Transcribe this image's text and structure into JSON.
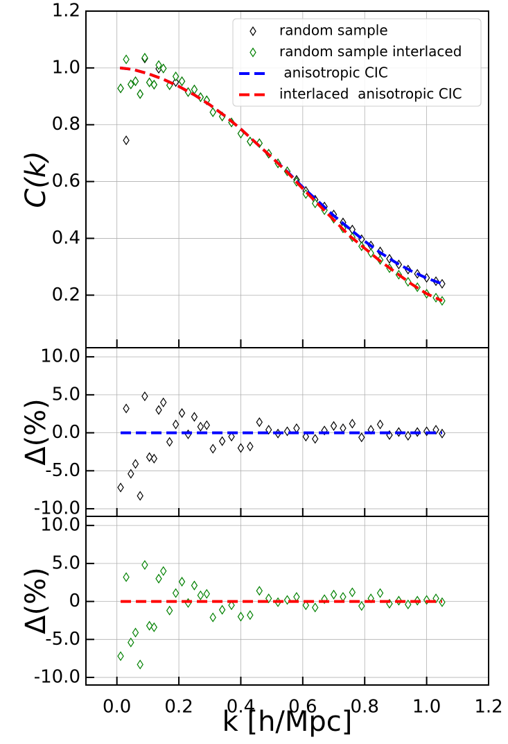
{
  "chart_data": [
    {
      "type": "scatter",
      "ylabel": "C(k)",
      "xlim": [
        -0.1,
        1.2
      ],
      "ylim": [
        0.015,
        1.2
      ],
      "xticks": [
        {
          "value": 0,
          "label": "0.0"
        },
        0.2,
        0.4,
        0.6,
        0.8,
        {
          "value": 1,
          "label": "1.0"
        },
        1.2
      ],
      "show_xtick_labels": false,
      "yticks": [
        0.2,
        0.4,
        0.6,
        0.8,
        {
          "value": 1,
          "label": "1.0"
        },
        1.2
      ],
      "grid": true,
      "legend": "upper right",
      "series": [
        {
          "name": "random sample",
          "mark": "diamond",
          "color": "#000000",
          "x": [
            0.012,
            0.03,
            0.045,
            0.06,
            0.075,
            0.09,
            0.105,
            0.12,
            0.135,
            0.15,
            0.17,
            0.19,
            0.21,
            0.23,
            0.25,
            0.27,
            0.29,
            0.31,
            0.34,
            0.37,
            0.4,
            0.43,
            0.46,
            0.49,
            0.52,
            0.55,
            0.58,
            0.61,
            0.64,
            0.67,
            0.7,
            0.73,
            0.76,
            0.79,
            0.82,
            0.85,
            0.88,
            0.91,
            0.94,
            0.97,
            1.0,
            1.03,
            1.05
          ],
          "values": [
            0.928,
            0.745,
            0.942,
            0.953,
            0.908,
            1.033,
            0.949,
            0.941,
            0.997,
            0.998,
            0.939,
            0.95,
            0.953,
            0.915,
            0.924,
            0.897,
            0.886,
            0.844,
            0.829,
            0.808,
            0.769,
            0.741,
            0.735,
            0.698,
            0.664,
            0.636,
            0.606,
            0.567,
            0.536,
            0.512,
            0.484,
            0.456,
            0.431,
            0.397,
            0.375,
            0.354,
            0.328,
            0.308,
            0.29,
            0.275,
            0.261,
            0.249,
            0.24
          ]
        },
        {
          "name": "random sample interlaced",
          "mark": "diamond",
          "color": "#008000",
          "x": [
            0.012,
            0.03,
            0.045,
            0.06,
            0.075,
            0.09,
            0.105,
            0.12,
            0.135,
            0.15,
            0.17,
            0.19,
            0.21,
            0.23,
            0.25,
            0.27,
            0.29,
            0.31,
            0.34,
            0.37,
            0.4,
            0.43,
            0.46,
            0.49,
            0.52,
            0.55,
            0.58,
            0.61,
            0.64,
            0.67,
            0.7,
            0.73,
            0.76,
            0.79,
            0.82,
            0.85,
            0.88,
            0.91,
            0.94,
            0.97,
            1.0,
            1.03,
            1.05
          ],
          "values": [
            0.928,
            1.03,
            0.942,
            0.953,
            0.908,
            1.036,
            0.949,
            0.941,
            1.01,
            0.998,
            0.939,
            0.97,
            0.953,
            0.915,
            0.924,
            0.897,
            0.886,
            0.844,
            0.829,
            0.808,
            0.769,
            0.741,
            0.735,
            0.698,
            0.664,
            0.636,
            0.599,
            0.556,
            0.523,
            0.499,
            0.469,
            0.435,
            0.404,
            0.372,
            0.348,
            0.324,
            0.295,
            0.272,
            0.247,
            0.228,
            0.205,
            0.191,
            0.18
          ]
        },
        {
          "name": " anisotropic CIC",
          "mark": "dashed-line",
          "color": "#0000ff",
          "x": [
            0.01,
            0.05,
            0.1,
            0.15,
            0.2,
            0.25,
            0.3,
            0.35,
            0.4,
            0.45,
            0.5,
            0.55,
            0.6,
            0.65,
            0.7,
            0.75,
            0.8,
            0.85,
            0.9,
            0.95,
            1.0,
            1.05
          ],
          "values": [
            1.0,
            0.995,
            0.98,
            0.96,
            0.935,
            0.905,
            0.87,
            0.83,
            0.785,
            0.735,
            0.685,
            0.635,
            0.58,
            0.53,
            0.48,
            0.435,
            0.39,
            0.35,
            0.315,
            0.285,
            0.26,
            0.24
          ]
        },
        {
          "name": "interlaced  anisotropic CIC",
          "mark": "dashed-line",
          "color": "#ff0000",
          "x": [
            0.01,
            0.05,
            0.1,
            0.15,
            0.2,
            0.25,
            0.3,
            0.35,
            0.4,
            0.45,
            0.5,
            0.55,
            0.6,
            0.65,
            0.7,
            0.75,
            0.8,
            0.85,
            0.9,
            0.95,
            1.0,
            1.05
          ],
          "values": [
            1.0,
            0.995,
            0.98,
            0.96,
            0.935,
            0.905,
            0.87,
            0.83,
            0.785,
            0.735,
            0.685,
            0.633,
            0.575,
            0.52,
            0.465,
            0.41,
            0.365,
            0.32,
            0.28,
            0.24,
            0.205,
            0.18
          ]
        }
      ]
    },
    {
      "type": "scatter",
      "ylabel": "Δ(%)",
      "xlim": [
        -0.1,
        1.2
      ],
      "ylim": [
        -11,
        11.2
      ],
      "xticks": [
        {
          "value": 0,
          "label": "0.0"
        },
        0.2,
        0.4,
        0.6,
        0.8,
        {
          "value": 1,
          "label": "1.0"
        },
        1.2
      ],
      "show_xtick_labels": false,
      "yticks": [
        {
          "value": -10,
          "label": "-10.0"
        },
        {
          "value": -5,
          "label": "-5.0"
        },
        {
          "value": 0,
          "label": "0.0"
        },
        {
          "value": 5,
          "label": "5.0"
        },
        {
          "value": 10,
          "label": "10.0"
        }
      ],
      "grid": true,
      "series": [
        {
          "mark": "diamond",
          "color": "#000000",
          "x": [
            0.012,
            0.03,
            0.045,
            0.06,
            0.075,
            0.09,
            0.105,
            0.12,
            0.135,
            0.15,
            0.17,
            0.19,
            0.21,
            0.23,
            0.25,
            0.27,
            0.29,
            0.31,
            0.34,
            0.37,
            0.4,
            0.43,
            0.46,
            0.49,
            0.52,
            0.55,
            0.58,
            0.61,
            0.64,
            0.67,
            0.7,
            0.73,
            0.76,
            0.79,
            0.82,
            0.85,
            0.88,
            0.91,
            0.94,
            0.97,
            1.0,
            1.03,
            1.05
          ],
          "values": [
            -7.2,
            3.2,
            -5.4,
            -4.1,
            -8.3,
            4.8,
            -3.2,
            -3.4,
            3,
            4,
            -1.2,
            1.1,
            2.6,
            -0.2,
            2.1,
            0.8,
            1,
            -2.1,
            -1.1,
            -0.5,
            -2,
            -1.8,
            1.4,
            0.4,
            -0.1,
            0.2,
            0.6,
            -0.5,
            -0.8,
            0.3,
            0.9,
            0.6,
            1.2,
            -0.6,
            0.4,
            1.1,
            -0.3,
            0.1,
            -0.4,
            0.1,
            0.2,
            0.4,
            -0.1
          ]
        },
        {
          "mark": "dashed-line",
          "color": "#0000ff",
          "x": [
            0.012,
            1.05
          ],
          "values": [
            0,
            0
          ]
        }
      ]
    },
    {
      "type": "scatter",
      "ylabel": "Δ(%)",
      "xlabel": "k [h/Mpc]",
      "xlim": [
        -0.1,
        1.2
      ],
      "ylim": [
        -11,
        11.2
      ],
      "xticks": [
        {
          "value": 0,
          "label": "0.0"
        },
        0.2,
        0.4,
        0.6,
        0.8,
        {
          "value": 1,
          "label": "1.0"
        },
        1.2
      ],
      "show_xtick_labels": true,
      "yticks": [
        {
          "value": -10,
          "label": "-10.0"
        },
        {
          "value": -5,
          "label": "-5.0"
        },
        0,
        {
          "value": 5,
          "label": "5.0"
        },
        {
          "value": 10,
          "label": "10.0"
        }
      ],
      "grid": true,
      "series": [
        {
          "mark": "diamond",
          "color": "#008000",
          "x": [
            0.012,
            0.03,
            0.045,
            0.06,
            0.075,
            0.09,
            0.105,
            0.12,
            0.135,
            0.15,
            0.17,
            0.19,
            0.21,
            0.23,
            0.25,
            0.27,
            0.29,
            0.31,
            0.34,
            0.37,
            0.4,
            0.43,
            0.46,
            0.49,
            0.52,
            0.55,
            0.58,
            0.61,
            0.64,
            0.67,
            0.7,
            0.73,
            0.76,
            0.79,
            0.82,
            0.85,
            0.88,
            0.91,
            0.94,
            0.97,
            1.0,
            1.03,
            1.05
          ],
          "values": [
            -7.2,
            3.2,
            -5.4,
            -4.1,
            -8.3,
            4.8,
            -3.2,
            -3.4,
            3,
            4,
            -1.2,
            1.1,
            2.6,
            -0.2,
            2.1,
            0.8,
            1,
            -2.1,
            -1.1,
            -0.5,
            -2,
            -1.8,
            1.4,
            0.4,
            -0.1,
            0.2,
            0.6,
            -0.5,
            -0.8,
            0.3,
            0.9,
            0.6,
            1.2,
            -0.6,
            0.4,
            1.1,
            -0.3,
            0.1,
            -0.4,
            0.1,
            0.2,
            0.4,
            -0.1
          ]
        },
        {
          "mark": "dashed-line",
          "color": "#ff0000",
          "x": [
            0.012,
            1.05
          ],
          "values": [
            0,
            0
          ]
        }
      ]
    }
  ]
}
